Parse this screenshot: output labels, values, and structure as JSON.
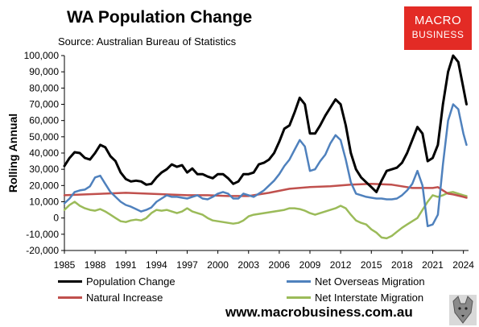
{
  "header": {
    "title": "WA Population Change",
    "source": "Source: Australian Bureau of Statistics",
    "logo_line1": "MACRO",
    "logo_line2": "BUSINESS",
    "website": "www.macrobusiness.com.au"
  },
  "colors": {
    "population": "#000000",
    "overseas": "#4f81bd",
    "natural": "#c0504d",
    "interstate": "#9bbb59",
    "logo": "#e32b25"
  },
  "chart_data": {
    "type": "line",
    "title": "WA Population Change",
    "ylabel": "Rolling Annual",
    "xlabel": "",
    "ylim": [
      -20000,
      100000
    ],
    "xlim": [
      1985,
      2024.5
    ],
    "yticks": [
      "-20,000",
      "-10,000",
      "0",
      "10,000",
      "20,000",
      "30,000",
      "40,000",
      "50,000",
      "60,000",
      "70,000",
      "80,000",
      "90,000",
      "100,000"
    ],
    "ytick_values": [
      -20000,
      -10000,
      0,
      10000,
      20000,
      30000,
      40000,
      50000,
      60000,
      70000,
      80000,
      90000,
      100000
    ],
    "xticks": [
      "1985",
      "1988",
      "1991",
      "1994",
      "1997",
      "2000",
      "2003",
      "2006",
      "2009",
      "2012",
      "2015",
      "2018",
      "2021",
      "2024"
    ],
    "xtick_values": [
      1985,
      1988,
      1991,
      1994,
      1997,
      2000,
      2003,
      2006,
      2009,
      2012,
      2015,
      2018,
      2021,
      2024
    ],
    "grid": false,
    "legend_position": "bottom",
    "series": [
      {
        "name": "Population Change",
        "color": "#000000",
        "x": [
          1985,
          1985.5,
          1986,
          1986.5,
          1987,
          1987.5,
          1988,
          1988.5,
          1989,
          1989.5,
          1990,
          1990.5,
          1991,
          1991.5,
          1992,
          1992.5,
          1993,
          1993.5,
          1994,
          1994.5,
          1995,
          1995.5,
          1996,
          1996.5,
          1997,
          1997.5,
          1998,
          1998.5,
          1999,
          1999.5,
          2000,
          2000.5,
          2001,
          2001.5,
          2002,
          2002.5,
          2003,
          2003.5,
          2004,
          2004.5,
          2005,
          2005.5,
          2006,
          2006.5,
          2007,
          2007.5,
          2008,
          2008.5,
          2009,
          2009.5,
          2010,
          2010.5,
          2011,
          2011.5,
          2012,
          2012.5,
          2013,
          2013.5,
          2014,
          2014.5,
          2015,
          2015.5,
          2016,
          2016.5,
          2017,
          2017.5,
          2018,
          2018.5,
          2019,
          2019.5,
          2020,
          2020.5,
          2021,
          2021.5,
          2022,
          2022.5,
          2023,
          2023.5,
          2024,
          2024.3
        ],
        "values": [
          32000,
          37000,
          40500,
          40000,
          37000,
          36000,
          40000,
          45000,
          43500,
          38000,
          35000,
          28000,
          24000,
          22500,
          23000,
          22500,
          20500,
          21000,
          25000,
          28000,
          30000,
          33000,
          31500,
          32500,
          28000,
          30500,
          27000,
          27000,
          25500,
          24500,
          27000,
          27000,
          24500,
          21000,
          22500,
          27000,
          27000,
          28000,
          33000,
          34000,
          36000,
          40000,
          47000,
          55000,
          57000,
          65000,
          74000,
          70000,
          52000,
          52000,
          57000,
          63000,
          68000,
          73000,
          70000,
          57000,
          40000,
          30000,
          25000,
          22000,
          19000,
          16000,
          23000,
          29000,
          30000,
          31000,
          34000,
          40000,
          48000,
          56000,
          52000,
          35000,
          37000,
          45000,
          70000,
          90000,
          100000,
          96000,
          80000,
          70000
        ]
      },
      {
        "name": "Net Overseas Migration",
        "color": "#4f81bd",
        "x": [
          1985,
          1985.5,
          1986,
          1986.5,
          1987,
          1987.5,
          1988,
          1988.5,
          1989,
          1989.5,
          1990,
          1990.5,
          1991,
          1991.5,
          1992,
          1992.5,
          1993,
          1993.5,
          1994,
          1994.5,
          1995,
          1995.5,
          1996,
          1996.5,
          1997,
          1997.5,
          1998,
          1998.5,
          1999,
          1999.5,
          2000,
          2000.5,
          2001,
          2001.5,
          2002,
          2002.5,
          2003,
          2003.5,
          2004,
          2004.5,
          2005,
          2005.5,
          2006,
          2006.5,
          2007,
          2007.5,
          2008,
          2008.5,
          2009,
          2009.5,
          2010,
          2010.5,
          2011,
          2011.5,
          2012,
          2012.5,
          2013,
          2013.5,
          2014,
          2014.5,
          2015,
          2015.5,
          2016,
          2016.5,
          2017,
          2017.5,
          2018,
          2018.5,
          2019,
          2019.5,
          2020,
          2020.5,
          2021,
          2021.5,
          2022,
          2022.5,
          2023,
          2023.5,
          2024,
          2024.3
        ],
        "values": [
          9000,
          12000,
          16000,
          17000,
          17500,
          19500,
          25000,
          26000,
          21000,
          16000,
          13000,
          10000,
          8000,
          7000,
          5500,
          4000,
          5000,
          6500,
          10000,
          12000,
          14000,
          13000,
          13000,
          12500,
          12000,
          13000,
          14000,
          12000,
          11500,
          13000,
          15000,
          16000,
          15000,
          12000,
          12000,
          15000,
          14000,
          13000,
          15000,
          17000,
          20000,
          23000,
          27000,
          32000,
          36000,
          42000,
          48000,
          44000,
          29000,
          30000,
          35000,
          39000,
          46000,
          51000,
          48000,
          36000,
          22000,
          15000,
          14000,
          13000,
          12500,
          12000,
          12000,
          11500,
          11500,
          12000,
          14000,
          17000,
          21000,
          29000,
          20000,
          -5000,
          -4000,
          2000,
          33000,
          60000,
          70000,
          67000,
          52000,
          45000
        ]
      },
      {
        "name": "Natural Increase",
        "color": "#c0504d",
        "x": [
          1985,
          1987,
          1989,
          1991,
          1993,
          1995,
          1997,
          1999,
          2001,
          2003,
          2005,
          2007,
          2009,
          2011,
          2013,
          2015,
          2017,
          2019,
          2021,
          2021.5,
          2022,
          2022.5,
          2023,
          2024,
          2024.3
        ],
        "values": [
          14000,
          14500,
          15000,
          15500,
          15000,
          14500,
          14000,
          14000,
          13500,
          13500,
          15500,
          18000,
          19000,
          19500,
          20500,
          21000,
          20500,
          18500,
          18500,
          19000,
          17000,
          15000,
          14500,
          13000,
          12500
        ]
      },
      {
        "name": "Net Interstate Migration",
        "color": "#9bbb59",
        "x": [
          1985,
          1985.5,
          1986,
          1986.5,
          1987,
          1987.5,
          1988,
          1988.5,
          1989,
          1989.5,
          1990,
          1990.5,
          1991,
          1991.5,
          1992,
          1992.5,
          1993,
          1993.5,
          1994,
          1994.5,
          1995,
          1995.5,
          1996,
          1996.5,
          1997,
          1997.5,
          1998,
          1998.5,
          1999,
          1999.5,
          2000,
          2000.5,
          2001,
          2001.5,
          2002,
          2002.5,
          2003,
          2003.5,
          2004,
          2004.5,
          2005,
          2005.5,
          2006,
          2006.5,
          2007,
          2007.5,
          2008,
          2008.5,
          2009,
          2009.5,
          2010,
          2010.5,
          2011,
          2011.5,
          2012,
          2012.5,
          2013,
          2013.5,
          2014,
          2014.5,
          2015,
          2015.5,
          2016,
          2016.5,
          2017,
          2017.5,
          2018,
          2018.5,
          2019,
          2019.5,
          2020,
          2020.5,
          2021,
          2021.5,
          2022,
          2022.5,
          2023,
          2023.5,
          2024,
          2024.3
        ],
        "values": [
          5000,
          8000,
          10000,
          7500,
          6000,
          5000,
          4500,
          5500,
          4000,
          2000,
          0,
          -2000,
          -2500,
          -1500,
          -1000,
          -1500,
          0,
          3000,
          5000,
          4500,
          5000,
          4000,
          3000,
          4000,
          6000,
          4000,
          3000,
          2000,
          0,
          -1500,
          -2000,
          -2500,
          -3000,
          -3500,
          -3000,
          -1500,
          1000,
          2000,
          2500,
          3000,
          3500,
          4000,
          4500,
          5000,
          6000,
          6000,
          5500,
          4500,
          3000,
          2000,
          3000,
          4000,
          5000,
          6000,
          7500,
          6000,
          2000,
          -1500,
          -3000,
          -4000,
          -7000,
          -9000,
          -12000,
          -12500,
          -11000,
          -8500,
          -6000,
          -4000,
          -2000,
          0,
          5000,
          10000,
          14000,
          13000,
          14000,
          15500,
          16000,
          15000,
          14000,
          13500
        ]
      }
    ]
  }
}
